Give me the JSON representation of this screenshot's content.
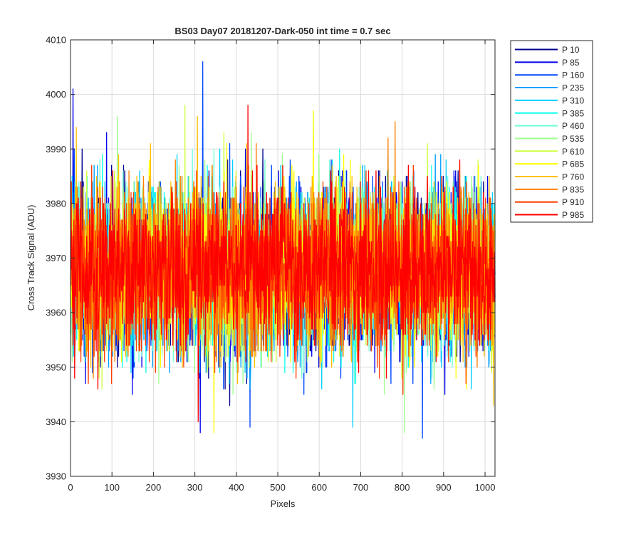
{
  "chart_data": {
    "type": "line",
    "title": "BS03 Day07 20181207-Dark-050 int time = 0.7 sec",
    "xlabel": "Pixels",
    "ylabel": "Cross Track Signal (ADU)",
    "xlim": [
      0,
      1024
    ],
    "ylim": [
      3930,
      4010
    ],
    "xticks": [
      0,
      100,
      200,
      300,
      400,
      500,
      600,
      700,
      800,
      900,
      1000
    ],
    "yticks": [
      3930,
      3940,
      3950,
      3960,
      3970,
      3980,
      3990,
      4000,
      4010
    ],
    "grid": true,
    "legend_position": "outside-top-right",
    "noise": {
      "mean": 3968,
      "std": 7.2,
      "num_points": 1024
    },
    "series": [
      {
        "name": "P 10",
        "color": "#00008f"
      },
      {
        "name": "P 85",
        "color": "#0000ea"
      },
      {
        "name": "P 160",
        "color": "#0047ff"
      },
      {
        "name": "P 235",
        "color": "#00a0ff"
      },
      {
        "name": "P 310",
        "color": "#00d0ff"
      },
      {
        "name": "P 385",
        "color": "#10ffef"
      },
      {
        "name": "P 460",
        "color": "#70ffd8"
      },
      {
        "name": "P 535",
        "color": "#a0ff90"
      },
      {
        "name": "P 610",
        "color": "#d0ff40"
      },
      {
        "name": "P 685",
        "color": "#ffff00"
      },
      {
        "name": "P 760",
        "color": "#ffbf00"
      },
      {
        "name": "P 835",
        "color": "#ff7f00"
      },
      {
        "name": "P 910",
        "color": "#ff3f00"
      },
      {
        "name": "P 985",
        "color": "#ff0000"
      }
    ],
    "spikes": [
      {
        "series": "P 85",
        "x": 5,
        "y": 4001
      },
      {
        "series": "P 160",
        "x": 318,
        "y": 4006
      },
      {
        "series": "P 985",
        "x": 427,
        "y": 3998
      },
      {
        "series": "P 610",
        "x": 275,
        "y": 3998
      },
      {
        "series": "P 685",
        "x": 585,
        "y": 3997
      },
      {
        "series": "P 85",
        "x": 312,
        "y": 3938
      },
      {
        "series": "P 160",
        "x": 432,
        "y": 3939
      },
      {
        "series": "P 160",
        "x": 848,
        "y": 3937
      },
      {
        "series": "P 535",
        "x": 805,
        "y": 3938
      },
      {
        "series": "P 685",
        "x": 345,
        "y": 3938
      },
      {
        "series": "P 985",
        "x": 307,
        "y": 3940
      },
      {
        "series": "P 310",
        "x": 680,
        "y": 3939
      }
    ]
  }
}
